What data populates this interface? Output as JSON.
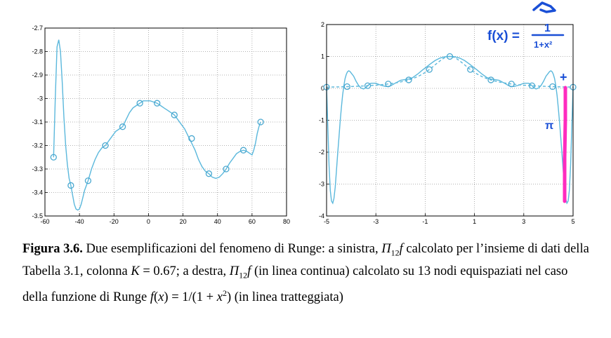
{
  "chart_data": [
    {
      "type": "line",
      "xlim": [
        -60,
        80
      ],
      "ylim": [
        -3.5,
        -2.7
      ],
      "x_ticks": [
        "-60",
        "-40",
        "-20",
        "0",
        "20",
        "40",
        "60",
        "80"
      ],
      "y_ticks": [
        "-2.7",
        "-2.8",
        "-2.9",
        "-3",
        "-3.1",
        "-3.2",
        "-3.3",
        "-3.4",
        "-3.5"
      ],
      "grid": true,
      "series": [
        {
          "style": "solid",
          "color": "#5bb8dc",
          "x": [
            -55,
            -54,
            -53,
            -52,
            -51,
            -50,
            -49,
            -48,
            -47,
            -46,
            -45,
            -44,
            -43,
            -42,
            -41,
            -40,
            -39,
            -38,
            -37,
            -36,
            -35,
            -33,
            -31,
            -29,
            -27,
            -25,
            -23,
            -21,
            -19,
            -17,
            -15,
            -13,
            -11,
            -9,
            -7,
            -5,
            -3,
            -1,
            1,
            3,
            5,
            7,
            9,
            11,
            13,
            15,
            17,
            19,
            21,
            23,
            25,
            27,
            29,
            31,
            33,
            35,
            37,
            39,
            41,
            43,
            45,
            47,
            49,
            51,
            53,
            55,
            57,
            59,
            60,
            61,
            62,
            63,
            64,
            65
          ],
          "y": [
            -3.25,
            -3.0,
            -2.78,
            -2.75,
            -2.8,
            -2.93,
            -3.08,
            -3.2,
            -3.28,
            -3.34,
            -3.37,
            -3.41,
            -3.45,
            -3.47,
            -3.475,
            -3.47,
            -3.45,
            -3.42,
            -3.39,
            -3.37,
            -3.35,
            -3.3,
            -3.26,
            -3.23,
            -3.21,
            -3.2,
            -3.18,
            -3.16,
            -3.14,
            -3.13,
            -3.12,
            -3.09,
            -3.06,
            -3.04,
            -3.03,
            -3.02,
            -3.01,
            -3.01,
            -3.01,
            -3.015,
            -3.02,
            -3.03,
            -3.04,
            -3.05,
            -3.06,
            -3.07,
            -3.09,
            -3.11,
            -3.13,
            -3.16,
            -3.19,
            -3.22,
            -3.26,
            -3.29,
            -3.31,
            -3.32,
            -3.335,
            -3.34,
            -3.335,
            -3.32,
            -3.3,
            -3.275,
            -3.255,
            -3.235,
            -3.225,
            -3.22,
            -3.225,
            -3.235,
            -3.24,
            -3.22,
            -3.19,
            -3.15,
            -3.12,
            -3.1
          ]
        }
      ],
      "markers": {
        "x": [
          -55,
          -45,
          -35,
          -25,
          -15,
          -5,
          5,
          15,
          25,
          35,
          45,
          55,
          65
        ],
        "y": [
          -3.25,
          -3.37,
          -3.35,
          -3.2,
          -3.12,
          -3.02,
          -3.02,
          -3.07,
          -3.17,
          -3.32,
          -3.3,
          -3.22,
          -3.1
        ]
      }
    },
    {
      "type": "line",
      "xlim": [
        -5,
        5
      ],
      "ylim": [
        -4,
        2
      ],
      "x_ticks": [
        "-5",
        "-3",
        "-1",
        "1",
        "3",
        "5"
      ],
      "y_ticks": [
        "2",
        "1",
        "0",
        "-1",
        "-2",
        "-3",
        "-4"
      ],
      "grid": true,
      "series": [
        {
          "style": "solid",
          "color": "#5bb8dc",
          "x": [
            -5,
            -4.95,
            -4.9,
            -4.85,
            -4.8,
            -4.75,
            -4.7,
            -4.65,
            -4.6,
            -4.55,
            -4.5,
            -4.45,
            -4.4,
            -4.35,
            -4.3,
            -4.25,
            -4.2,
            -4.15,
            -4.1,
            -4.05,
            -4.0,
            -3.9,
            -3.8,
            -3.7,
            -3.6,
            -3.5,
            -3.4,
            -3.33,
            -3.2,
            -3.0,
            -2.8,
            -2.6,
            -2.5,
            -2.4,
            -2.2,
            -2.0,
            -1.8,
            -1.67,
            -1.5,
            -1.3,
            -1.1,
            -1.0,
            -0.8,
            -0.6,
            -0.4,
            -0.2,
            0,
            0.2,
            0.4,
            0.6,
            0.8,
            1.0,
            1.1,
            1.3,
            1.5,
            1.67,
            1.8,
            2.0,
            2.2,
            2.4,
            2.5,
            2.6,
            2.8,
            3.0,
            3.2,
            3.33,
            3.4,
            3.5,
            3.6,
            3.7,
            3.8,
            3.9,
            4.0,
            4.05,
            4.1,
            4.15,
            4.2,
            4.25,
            4.3,
            4.35,
            4.4,
            4.45,
            4.5,
            4.55,
            4.6,
            4.65,
            4.7,
            4.75,
            4.8,
            4.85,
            4.9,
            4.95,
            5.0
          ],
          "y": [
            0.04,
            -1.2,
            -2.4,
            -3.2,
            -3.53,
            -3.6,
            -3.45,
            -3.1,
            -2.6,
            -2.05,
            -1.55,
            -1.05,
            -0.6,
            -0.22,
            0.08,
            0.3,
            0.44,
            0.52,
            0.55,
            0.53,
            0.48,
            0.38,
            0.22,
            0.09,
            0.01,
            -0.02,
            0.02,
            0.09,
            0.16,
            0.16,
            0.1,
            0.06,
            0.06,
            0.08,
            0.17,
            0.25,
            0.28,
            0.29,
            0.34,
            0.45,
            0.58,
            0.64,
            0.76,
            0.87,
            0.95,
            0.99,
            1.0,
            0.99,
            0.95,
            0.87,
            0.76,
            0.64,
            0.58,
            0.45,
            0.34,
            0.29,
            0.28,
            0.25,
            0.17,
            0.08,
            0.06,
            0.06,
            0.1,
            0.16,
            0.16,
            0.09,
            0.02,
            -0.02,
            0.01,
            0.09,
            0.22,
            0.38,
            0.48,
            0.53,
            0.55,
            0.52,
            0.44,
            0.3,
            0.08,
            -0.22,
            -0.6,
            -1.05,
            -1.55,
            -2.05,
            -2.6,
            -3.1,
            -3.45,
            -3.6,
            -3.53,
            -3.2,
            -2.4,
            -1.2,
            0.04
          ]
        },
        {
          "style": "dashed",
          "color": "#5bb8dc",
          "function": "1/(1+x^2)"
        }
      ],
      "markers": {
        "x": [
          -5,
          -4.1667,
          -3.3333,
          -2.5,
          -1.6667,
          -0.8333,
          0,
          0.8333,
          1.6667,
          2.5,
          3.3333,
          4.1667,
          5
        ],
        "y": [
          0.0385,
          0.0544,
          0.0826,
          0.1379,
          0.2647,
          0.5902,
          1.0,
          0.5902,
          0.2647,
          0.1379,
          0.0826,
          0.0544,
          0.0385
        ]
      }
    }
  ],
  "annotations": {
    "equation_lhs": "f(x) =",
    "equation_num": "1",
    "equation_den": "1+x²",
    "mark_plus": "+",
    "mark_pi": "π"
  },
  "caption": {
    "label": "Figura 3.6.",
    "p1": " Due esemplificazioni del fenomeno di Runge: a sinistra, ",
    "pi": "Π",
    "sub": "12",
    "f": "f",
    "p2": " calcolato per l’insieme di dati della Tabella 3.1, colonna ",
    "k": "K",
    "p3": " = 0.67; a destra, ",
    "p4": " (in linea continua) calcolato su 13 nodi equispaziati nel caso della funzione di Runge ",
    "p5": "f",
    "p6": "(",
    "p7": "x",
    "p8": ") = 1/(1 + ",
    "p9": "x",
    "p10": "2",
    "p11": ") (in linea tratteggiata)"
  }
}
